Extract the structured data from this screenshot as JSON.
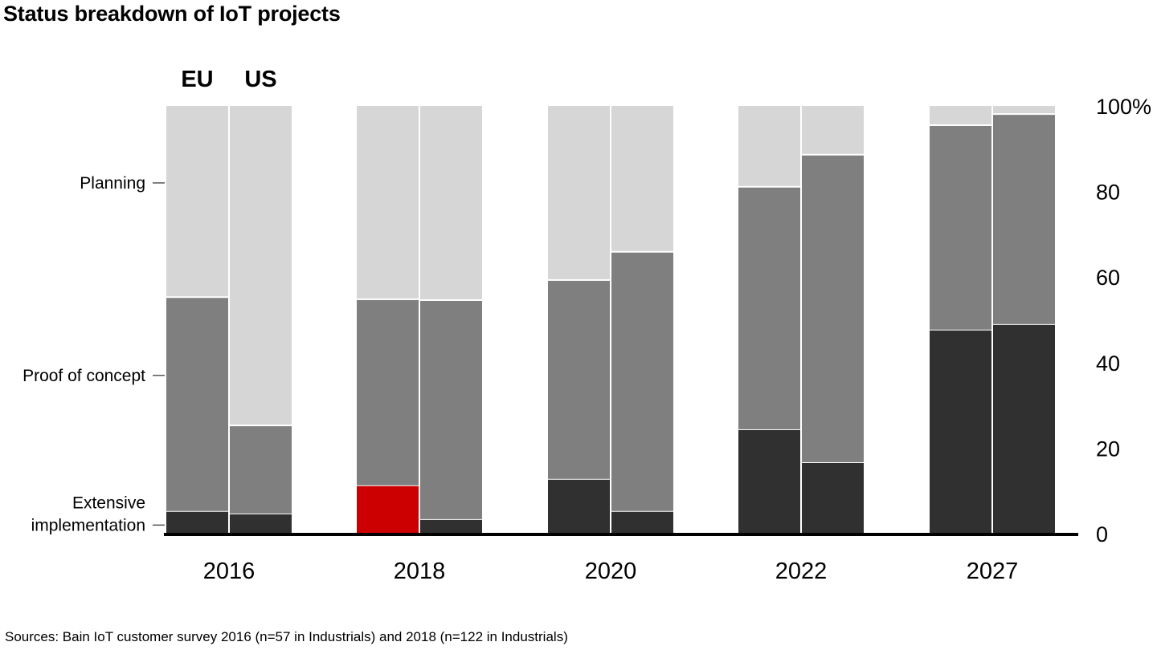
{
  "title": "Status breakdown of IoT projects",
  "source": "Sources: Bain IoT customer survey 2016 (n=57 in Industrials) and 2018 (n=122 in Industrials)",
  "chart_data": {
    "type": "bar",
    "stacked": true,
    "title": "Status breakdown of IoT projects",
    "xlabel": "",
    "ylabel": "",
    "ylim": [
      0,
      100
    ],
    "y_ticks": [
      "0",
      "20",
      "40",
      "60",
      "80",
      "100%"
    ],
    "y_tick_values": [
      0,
      20,
      40,
      60,
      80,
      100
    ],
    "y_axis_side": "right",
    "categories": [
      "2016",
      "2018",
      "2020",
      "2022",
      "2027"
    ],
    "groups": [
      "EU",
      "US"
    ],
    "group_labels_shown_above": "2016",
    "segment_labels": [
      "Extensive implementation",
      "Proof of concept",
      "Planning"
    ],
    "segment_label_positions": {
      "Planning": 82,
      "Proof of concept": 37,
      "Extensive implementation": 2
    },
    "colors": {
      "Extensive implementation": "#303030",
      "Proof of concept": "#7f7f7f",
      "Planning": "#d6d6d6",
      "highlight": "#cc0000"
    },
    "highlight": {
      "category": "2018",
      "group": "EU",
      "segment": "Extensive implementation"
    },
    "series": [
      {
        "name": "Extensive implementation",
        "EU": [
          5.3,
          11.3,
          12.8,
          24.4,
          47.7
        ],
        "US": [
          4.7,
          3.4,
          5.3,
          16.7,
          49.0
        ]
      },
      {
        "name": "Proof of concept",
        "EU": [
          50.0,
          43.5,
          46.5,
          56.7,
          47.8
        ],
        "US": [
          20.6,
          51.2,
          60.6,
          71.9,
          49.1
        ]
      },
      {
        "name": "Planning",
        "EU": [
          44.7,
          45.2,
          40.7,
          18.9,
          4.5
        ],
        "US": [
          74.7,
          45.4,
          34.1,
          11.4,
          1.9
        ]
      }
    ],
    "grid": false,
    "legend": "left-inline"
  }
}
